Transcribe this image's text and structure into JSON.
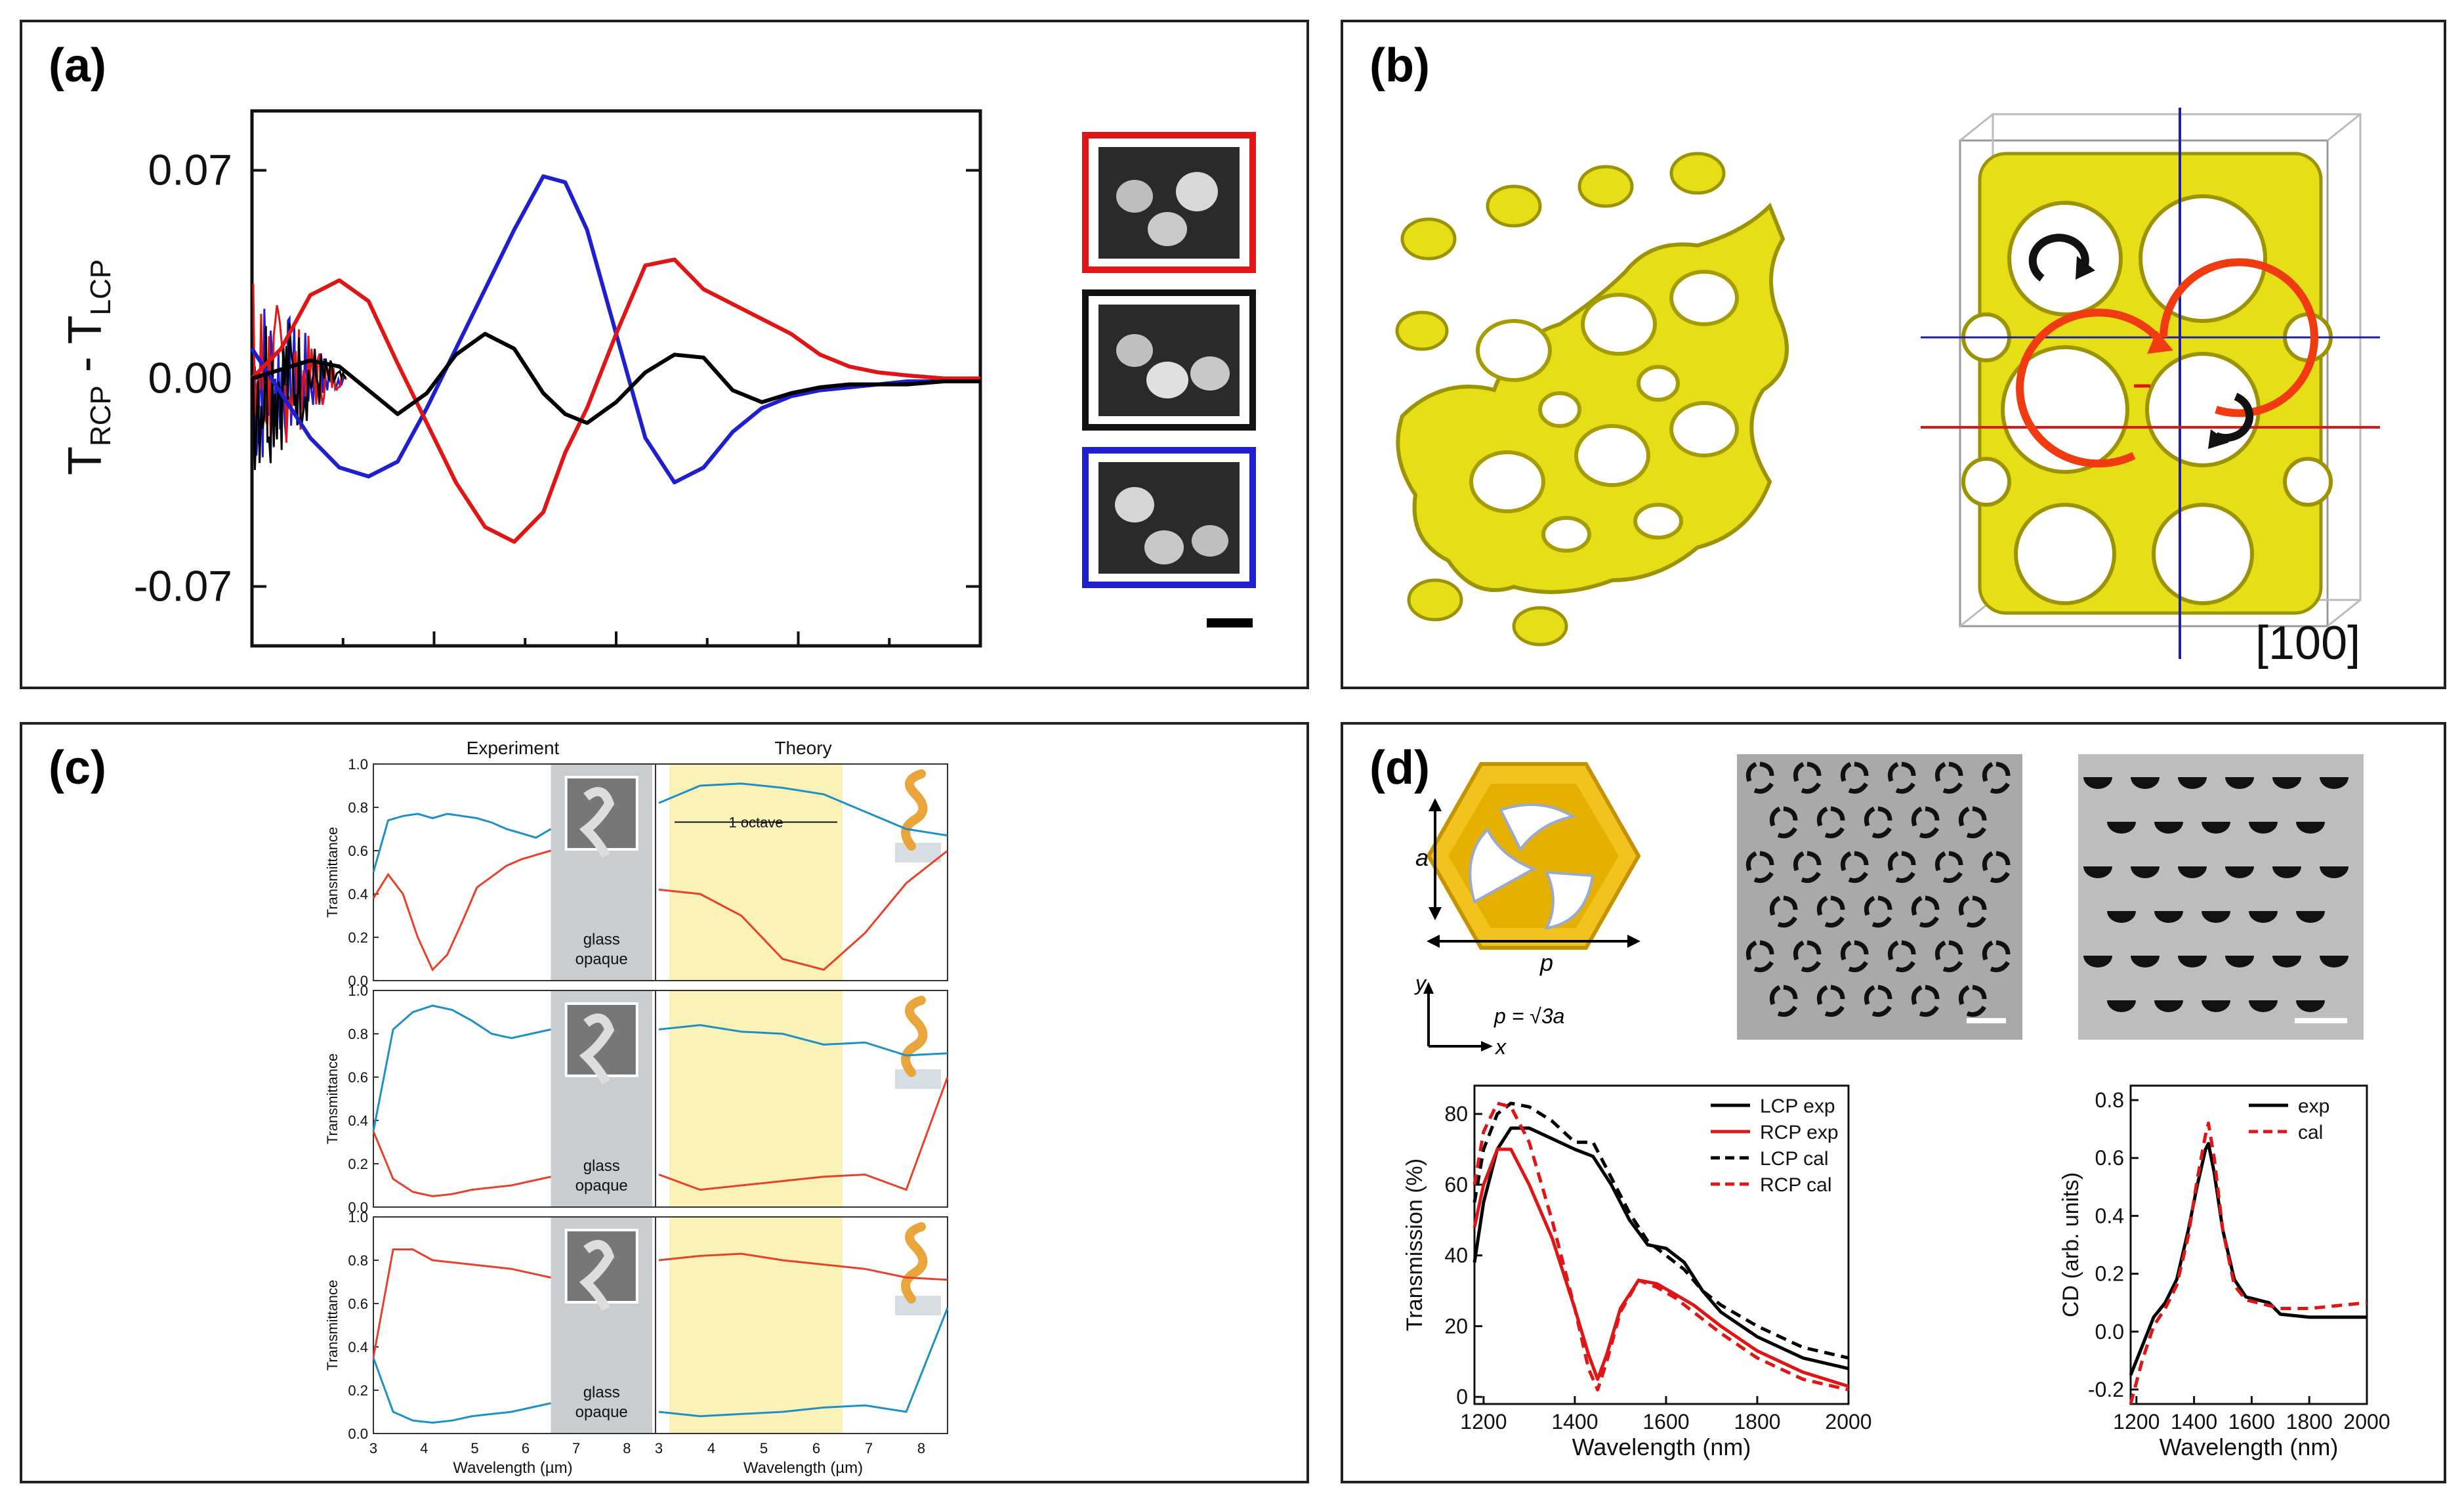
{
  "panels": {
    "a": {
      "label": "(a)"
    },
    "b": {
      "label": "(b)",
      "direction": "[100]"
    },
    "c": {
      "label": "(c)"
    },
    "d": {
      "label": "(d)"
    }
  },
  "chart_data": [
    {
      "id": "a",
      "type": "line",
      "title": "",
      "ylabel": "T_RCP - T_LCP",
      "ylabel_main": "T",
      "ylabel_sub1": "RCP",
      "ylabel_sub2": "LCP",
      "ylabel_minus": " - ",
      "xlabel": "",
      "yticks": [
        "0.07",
        "0.00",
        "-0.07"
      ],
      "ylim": [
        -0.09,
        0.09
      ],
      "xlim": [
        0,
        100
      ],
      "series": [
        {
          "name": "blue",
          "color": "#1f1fd0",
          "x": [
            0,
            4,
            8,
            12,
            16,
            20,
            24,
            28,
            32,
            36,
            40,
            43,
            46,
            50,
            54,
            58,
            62,
            66,
            70,
            74,
            78,
            82,
            86,
            90,
            95,
            100
          ],
          "y": [
            0.01,
            -0.005,
            -0.02,
            -0.03,
            -0.033,
            -0.028,
            -0.01,
            0.01,
            0.03,
            0.05,
            0.068,
            0.066,
            0.05,
            0.015,
            -0.02,
            -0.035,
            -0.03,
            -0.018,
            -0.01,
            -0.006,
            -0.004,
            -0.003,
            -0.002,
            -0.001,
            -0.001,
            -0.001
          ]
        },
        {
          "name": "red",
          "color": "#e01515",
          "x": [
            0,
            4,
            8,
            12,
            16,
            20,
            24,
            28,
            32,
            36,
            40,
            43,
            46,
            50,
            54,
            58,
            62,
            66,
            70,
            74,
            78,
            82,
            86,
            90,
            95,
            100
          ],
          "y": [
            0,
            0.01,
            0.028,
            0.033,
            0.026,
            0.005,
            -0.015,
            -0.035,
            -0.05,
            -0.055,
            -0.045,
            -0.025,
            -0.01,
            0.015,
            0.038,
            0.04,
            0.03,
            0.025,
            0.02,
            0.015,
            0.008,
            0.004,
            0.002,
            0.001,
            0,
            0
          ]
        },
        {
          "name": "black",
          "color": "#000000",
          "x": [
            0,
            4,
            8,
            12,
            16,
            20,
            24,
            28,
            32,
            36,
            40,
            43,
            46,
            50,
            54,
            58,
            62,
            66,
            70,
            74,
            78,
            82,
            86,
            90,
            95,
            100
          ],
          "y": [
            0,
            0.003,
            0.006,
            0.004,
            -0.004,
            -0.012,
            -0.005,
            0.008,
            0.015,
            0.01,
            -0.005,
            -0.012,
            -0.015,
            -0.008,
            0.002,
            0.008,
            0.007,
            -0.004,
            -0.008,
            -0.005,
            -0.003,
            -0.002,
            -0.002,
            -0.002,
            -0.001,
            -0.001
          ]
        }
      ]
    },
    {
      "id": "c",
      "type": "line",
      "top_labels": [
        "Experiment",
        "Theory"
      ],
      "ylabel": "Transmittance",
      "xlabel": "Wavelength (µm)",
      "yticks": [
        "0.0",
        "0.2",
        "0.4",
        "0.6",
        "0.8",
        "1.0"
      ],
      "xticks": [
        "3",
        "4",
        "5",
        "6",
        "7",
        "8"
      ],
      "ylim": [
        0,
        1
      ],
      "xlim": [
        3,
        8.5
      ],
      "shade_label_1": "glass",
      "shade_label_2": "opaque",
      "octave_label": "1 octave",
      "rows": [
        {
          "blue": [
            0.5,
            0.74,
            0.76,
            0.77,
            0.75,
            0.77,
            0.76,
            0.75,
            0.73,
            0.7,
            0.68,
            0.66,
            0.7
          ],
          "red": [
            0.38,
            0.49,
            0.4,
            0.2,
            0.05,
            0.12,
            0.27,
            0.43,
            0.48,
            0.53,
            0.56,
            0.58,
            0.6
          ],
          "theory_blue": [
            0.82,
            0.9,
            0.91,
            0.89,
            0.86,
            0.78,
            0.7,
            0.67
          ],
          "theory_red": [
            0.42,
            0.4,
            0.3,
            0.1,
            0.05,
            0.22,
            0.45,
            0.6
          ]
        },
        {
          "blue": [
            0.35,
            0.82,
            0.9,
            0.93,
            0.91,
            0.86,
            0.8,
            0.78,
            0.8,
            0.82
          ],
          "red": [
            0.35,
            0.13,
            0.07,
            0.05,
            0.06,
            0.08,
            0.09,
            0.1,
            0.12,
            0.14
          ],
          "theory_blue": [
            0.82,
            0.84,
            0.81,
            0.8,
            0.75,
            0.76,
            0.7,
            0.71
          ],
          "theory_red": [
            0.15,
            0.08,
            0.1,
            0.12,
            0.14,
            0.15,
            0.08,
            0.6
          ]
        },
        {
          "blue": [
            0.35,
            0.1,
            0.06,
            0.05,
            0.06,
            0.08,
            0.09,
            0.1,
            0.12,
            0.14
          ],
          "red": [
            0.35,
            0.85,
            0.85,
            0.8,
            0.79,
            0.78,
            0.77,
            0.76,
            0.74,
            0.72
          ],
          "theory_blue": [
            0.1,
            0.08,
            0.09,
            0.1,
            0.12,
            0.13,
            0.1,
            0.58
          ],
          "theory_red": [
            0.8,
            0.82,
            0.83,
            0.8,
            0.78,
            0.76,
            0.72,
            0.71
          ]
        }
      ]
    },
    {
      "id": "d1",
      "type": "line",
      "xlabel": "Wavelength (nm)",
      "ylabel": "Transmission (%)",
      "xlim": [
        1180,
        2000
      ],
      "ylim": [
        -2,
        88
      ],
      "xticks": [
        "1200",
        "1400",
        "1600",
        "1800",
        "2000"
      ],
      "yticks": [
        "0",
        "20",
        "40",
        "60",
        "80"
      ],
      "series": [
        {
          "name": "LCP exp",
          "color": "#000000",
          "dash": false,
          "x": [
            1180,
            1200,
            1230,
            1260,
            1300,
            1350,
            1400,
            1440,
            1480,
            1520,
            1560,
            1600,
            1640,
            1680,
            1720,
            1800,
            1900,
            2000
          ],
          "y": [
            38,
            55,
            70,
            76,
            76,
            73,
            70,
            68,
            60,
            50,
            43,
            42,
            38,
            30,
            24,
            17,
            11,
            8
          ]
        },
        {
          "name": "RCP exp",
          "color": "#e01515",
          "dash": false,
          "x": [
            1180,
            1200,
            1230,
            1260,
            1300,
            1350,
            1400,
            1430,
            1450,
            1470,
            1500,
            1540,
            1580,
            1620,
            1660,
            1720,
            1800,
            1900,
            2000
          ],
          "y": [
            48,
            60,
            70,
            70,
            60,
            45,
            25,
            12,
            5,
            12,
            25,
            33,
            32,
            29,
            26,
            20,
            13,
            7,
            3
          ]
        },
        {
          "name": "LCP cal",
          "color": "#000000",
          "dash": true,
          "x": [
            1180,
            1200,
            1230,
            1260,
            1300,
            1350,
            1400,
            1440,
            1480,
            1520,
            1560,
            1600,
            1640,
            1680,
            1720,
            1800,
            1900,
            2000
          ],
          "y": [
            55,
            70,
            80,
            83,
            82,
            78,
            72,
            72,
            62,
            52,
            44,
            40,
            36,
            30,
            26,
            20,
            14,
            11
          ]
        },
        {
          "name": "RCP cal",
          "color": "#e01515",
          "dash": true,
          "x": [
            1180,
            1200,
            1230,
            1260,
            1300,
            1350,
            1400,
            1430,
            1450,
            1470,
            1500,
            1540,
            1580,
            1620,
            1660,
            1720,
            1800,
            1900,
            2000
          ],
          "y": [
            60,
            75,
            83,
            82,
            72,
            50,
            25,
            8,
            2,
            10,
            24,
            33,
            31,
            28,
            24,
            18,
            11,
            5,
            2
          ]
        }
      ],
      "legend": [
        "LCP exp",
        "RCP exp",
        "LCP cal",
        "RCP cal"
      ]
    },
    {
      "id": "d2",
      "type": "line",
      "xlabel": "Wavelength (nm)",
      "ylabel": "CD (arb. units)",
      "xlim": [
        1180,
        2000
      ],
      "ylim": [
        -0.25,
        0.85
      ],
      "xticks": [
        "1200",
        "1400",
        "1600",
        "1800",
        "2000"
      ],
      "yticks": [
        "-0.2",
        "0.0",
        "0.2",
        "0.4",
        "0.6",
        "0.8"
      ],
      "series": [
        {
          "name": "exp",
          "color": "#000000",
          "dash": false,
          "x": [
            1180,
            1220,
            1260,
            1300,
            1340,
            1380,
            1410,
            1440,
            1450,
            1470,
            1500,
            1540,
            1580,
            1620,
            1660,
            1700,
            1800,
            1900,
            2000
          ],
          "y": [
            -0.15,
            -0.05,
            0.05,
            0.1,
            0.18,
            0.35,
            0.5,
            0.63,
            0.65,
            0.55,
            0.35,
            0.18,
            0.12,
            0.11,
            0.1,
            0.06,
            0.05,
            0.05,
            0.05
          ]
        },
        {
          "name": "cal",
          "color": "#e01515",
          "dash": true,
          "x": [
            1180,
            1220,
            1260,
            1300,
            1340,
            1380,
            1410,
            1440,
            1450,
            1470,
            1500,
            1540,
            1580,
            1620,
            1660,
            1700,
            1800,
            1900,
            2000
          ],
          "y": [
            -0.25,
            -0.1,
            0.02,
            0.08,
            0.16,
            0.33,
            0.52,
            0.68,
            0.72,
            0.6,
            0.35,
            0.16,
            0.11,
            0.1,
            0.09,
            0.08,
            0.08,
            0.09,
            0.1
          ]
        }
      ],
      "legend": [
        "exp",
        "cal"
      ]
    }
  ],
  "panel_d_labels": {
    "a": "a",
    "p": "p",
    "formula": "p = √3a",
    "y_axis": "y",
    "x_axis": "x"
  }
}
